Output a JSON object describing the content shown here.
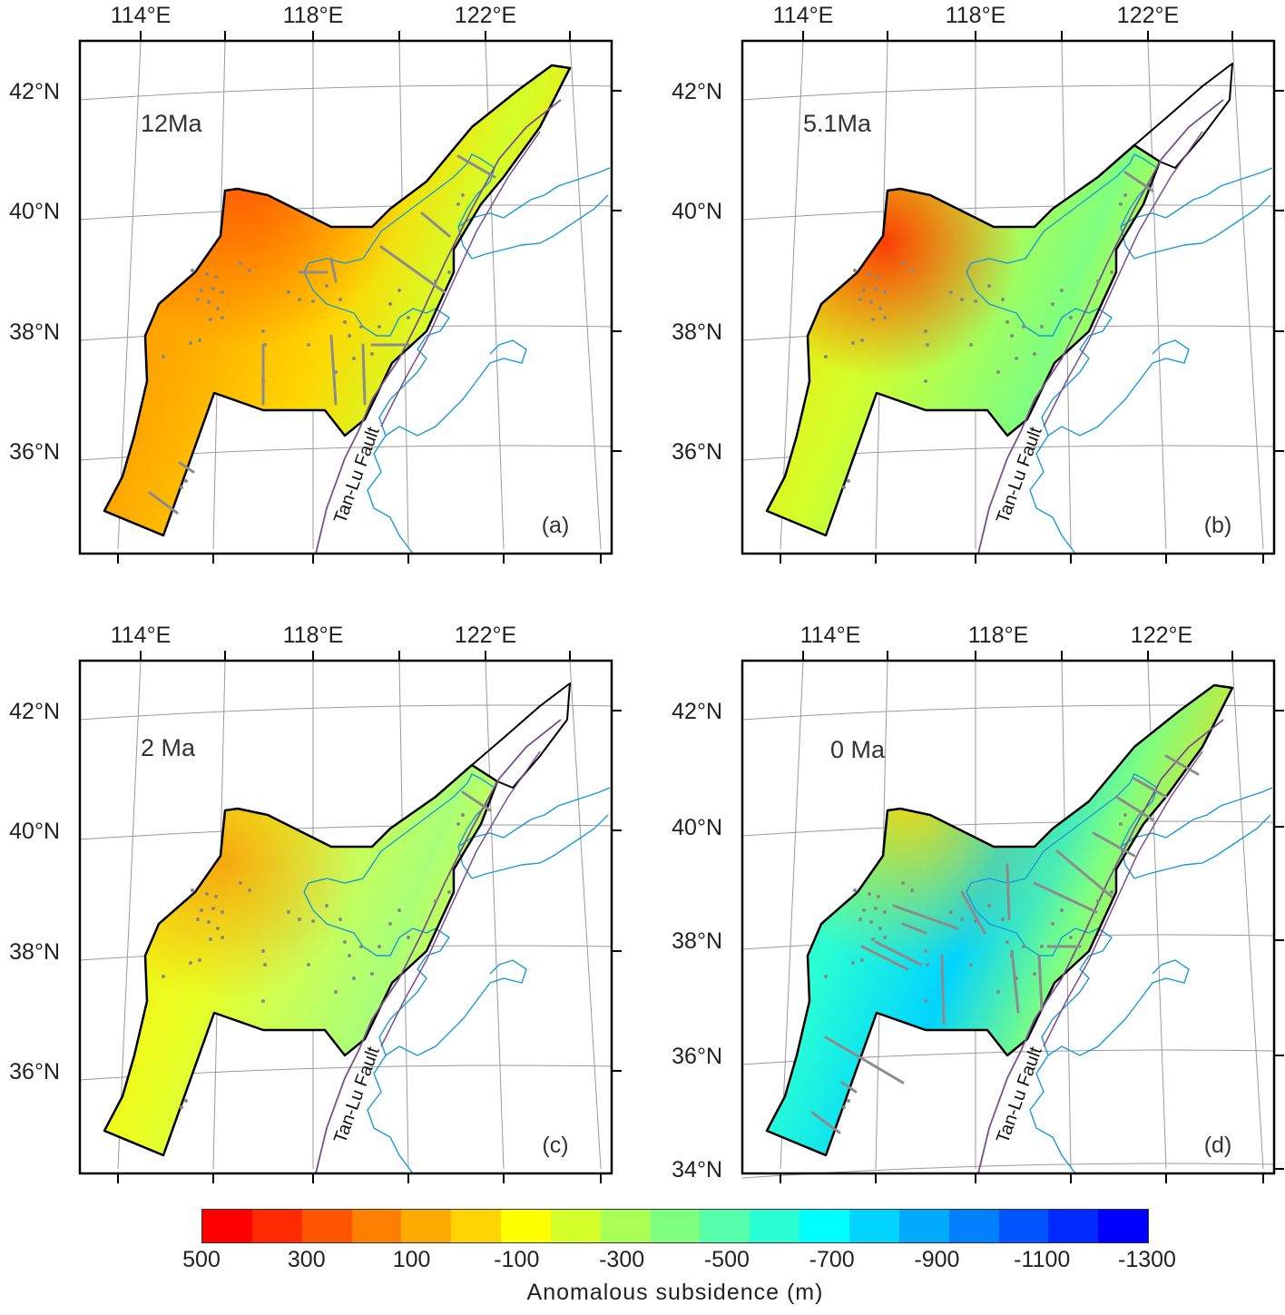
{
  "panels": [
    {
      "id": "a",
      "label": "(a)",
      "age": "12Ma",
      "scheme": "warm",
      "lon_labels": [
        "114°E",
        "118°E",
        "122°E"
      ],
      "lat_labels": [
        "42°N",
        "40°N",
        "38°N",
        "36°N"
      ],
      "extent": "ne"
    },
    {
      "id": "b",
      "label": "(b)",
      "age": "5.1Ma",
      "scheme": "mixed",
      "lon_labels": [
        "114°E",
        "118°E",
        "122°E"
      ],
      "lat_labels": [
        "42°N",
        "40°N",
        "38°N",
        "36°N"
      ],
      "extent": "mid"
    },
    {
      "id": "c",
      "label": "(c)",
      "age": "2 Ma",
      "scheme": "pale",
      "lon_labels": [
        "114°E",
        "118°E",
        "122°E"
      ],
      "lat_labels": [
        "42°N",
        "40°N",
        "38°N",
        "36°N"
      ],
      "extent": "mid"
    },
    {
      "id": "d",
      "label": "(d)",
      "age": "0 Ma",
      "scheme": "cool",
      "lon_labels": [
        "114°E",
        "118°E",
        "122°E"
      ],
      "lat_labels": [
        "42°N",
        "40°N",
        "38°N",
        "36°N",
        "34°N"
      ],
      "extent": "ne"
    }
  ],
  "fault_label": "Tan-Lu Fault",
  "colorbar": {
    "title": "Anomalous subsidence  (m)",
    "ticks": [
      "500",
      "300",
      "100",
      "-100",
      "-300",
      "-500",
      "-700",
      "-900",
      "-1100",
      "-1300"
    ],
    "colors": [
      "#ff0000",
      "#ff2a00",
      "#ff5500",
      "#ff7f00",
      "#ffaa00",
      "#ffd400",
      "#ffff00",
      "#d4ff2a",
      "#aaff55",
      "#7fff7f",
      "#55ffaa",
      "#2affd4",
      "#00ffff",
      "#00d4ff",
      "#00aaff",
      "#007fff",
      "#0055ff",
      "#002aff",
      "#0000ff"
    ],
    "range": [
      500,
      -1300
    ]
  },
  "colors": {
    "coastline": "#1a9ad6",
    "fault": "#7a4f8f",
    "profiles": "#8c8c8c",
    "frame": "#000000"
  }
}
